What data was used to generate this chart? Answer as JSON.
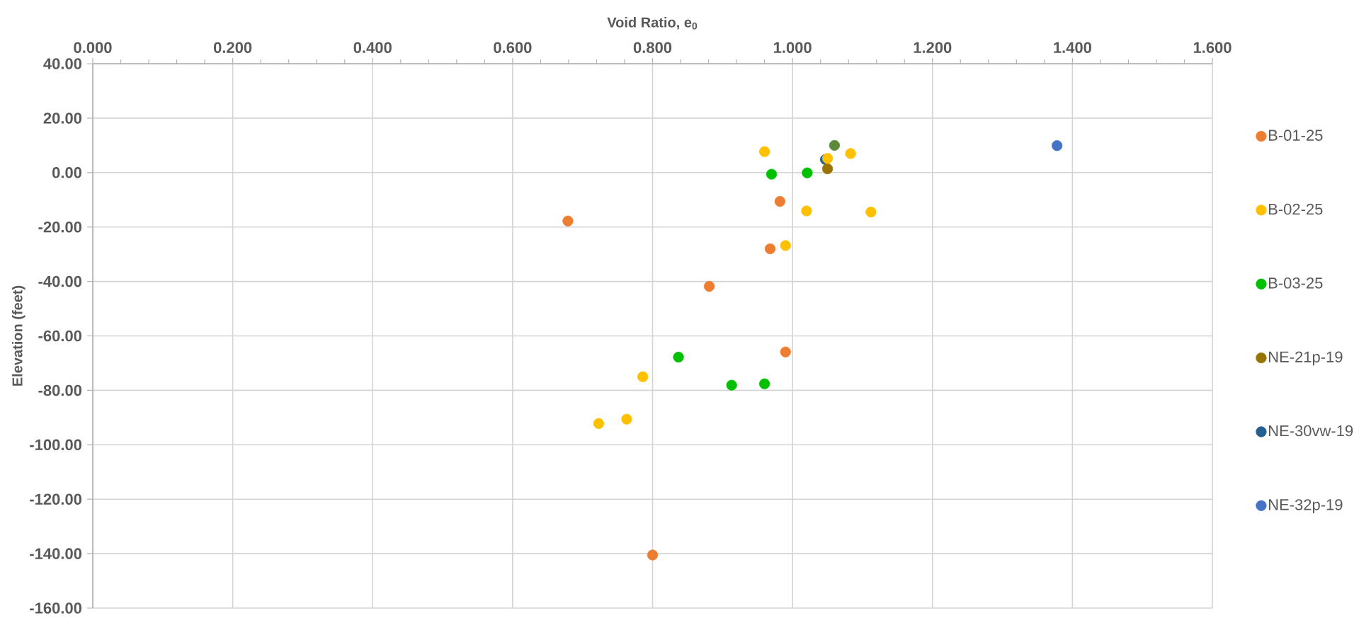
{
  "chart_data": {
    "type": "scatter",
    "xlabel": "Void Ratio, e$_{0}$",
    "ylabel": "Elevation (feet)",
    "xlim": [
      0,
      1.6
    ],
    "ylim": [
      -160,
      40
    ],
    "xticks": [
      {
        "value": 0,
        "label": "0.000"
      },
      {
        "value": 0.2,
        "label": "0.200"
      },
      {
        "value": 0.4,
        "label": "0.400"
      },
      {
        "value": 0.6,
        "label": "0.600"
      },
      {
        "value": 0.8,
        "label": "0.800"
      },
      {
        "value": 1.0,
        "label": "1.000"
      },
      {
        "value": 1.2,
        "label": "1.200"
      },
      {
        "value": 1.4,
        "label": "1.400"
      },
      {
        "value": 1.6,
        "label": "1.600"
      }
    ],
    "yticks": [
      {
        "value": 40,
        "label": "40.00"
      },
      {
        "value": 20,
        "label": "20.00"
      },
      {
        "value": 0,
        "label": "0.00"
      },
      {
        "value": -20,
        "label": "-20.00"
      },
      {
        "value": -40,
        "label": "-40.00"
      },
      {
        "value": -60,
        "label": "-60.00"
      },
      {
        "value": -80,
        "label": "-80.00"
      },
      {
        "value": -100,
        "label": "-100.00"
      },
      {
        "value": -120,
        "label": "-120.00"
      },
      {
        "value": -140,
        "label": "-140.00"
      },
      {
        "value": -160,
        "label": "-160.00"
      }
    ],
    "grid": true,
    "legend": "right",
    "marker": "circle",
    "series": [
      {
        "name": "B-01-25",
        "color": "#ed7d31",
        "x": [
          0.982,
          0.679,
          0.968,
          0.881,
          0.99,
          0.8
        ],
        "values": [
          -10.6,
          -17.8,
          -28.0,
          -41.8,
          -65.9,
          -140.5
        ]
      },
      {
        "name": "B-02-25",
        "color": "#ffc000",
        "x": [
          0.96,
          1.083,
          1.05,
          1.02,
          1.112,
          0.99,
          0.786,
          0.723,
          0.763
        ],
        "values": [
          7.7,
          7.0,
          5.2,
          -14.1,
          -14.5,
          -26.8,
          -75.0,
          -92.2,
          -90.6
        ]
      },
      {
        "name": "B-03-25",
        "color": "#00c000",
        "x": [
          0.97,
          1.021,
          0.837,
          0.913,
          0.96
        ],
        "values": [
          -0.6,
          -0.1,
          -67.8,
          -78.1,
          -77.6
        ]
      },
      {
        "name": "NE-21p-19",
        "color": "#997300",
        "x": [
          1.05
        ],
        "values": [
          1.4
        ]
      },
      {
        "name": "NE-30vw-19",
        "color": "#255e91",
        "x": [
          1.047
        ],
        "values": [
          4.8
        ]
      },
      {
        "name": "NE-32p-19",
        "color": "#4472c4",
        "x": [
          1.378
        ],
        "values": [
          9.9
        ]
      },
      {
        "color": "#5b8a3a",
        "x": [
          1.06
        ],
        "values": [
          10.0
        ]
      }
    ]
  }
}
